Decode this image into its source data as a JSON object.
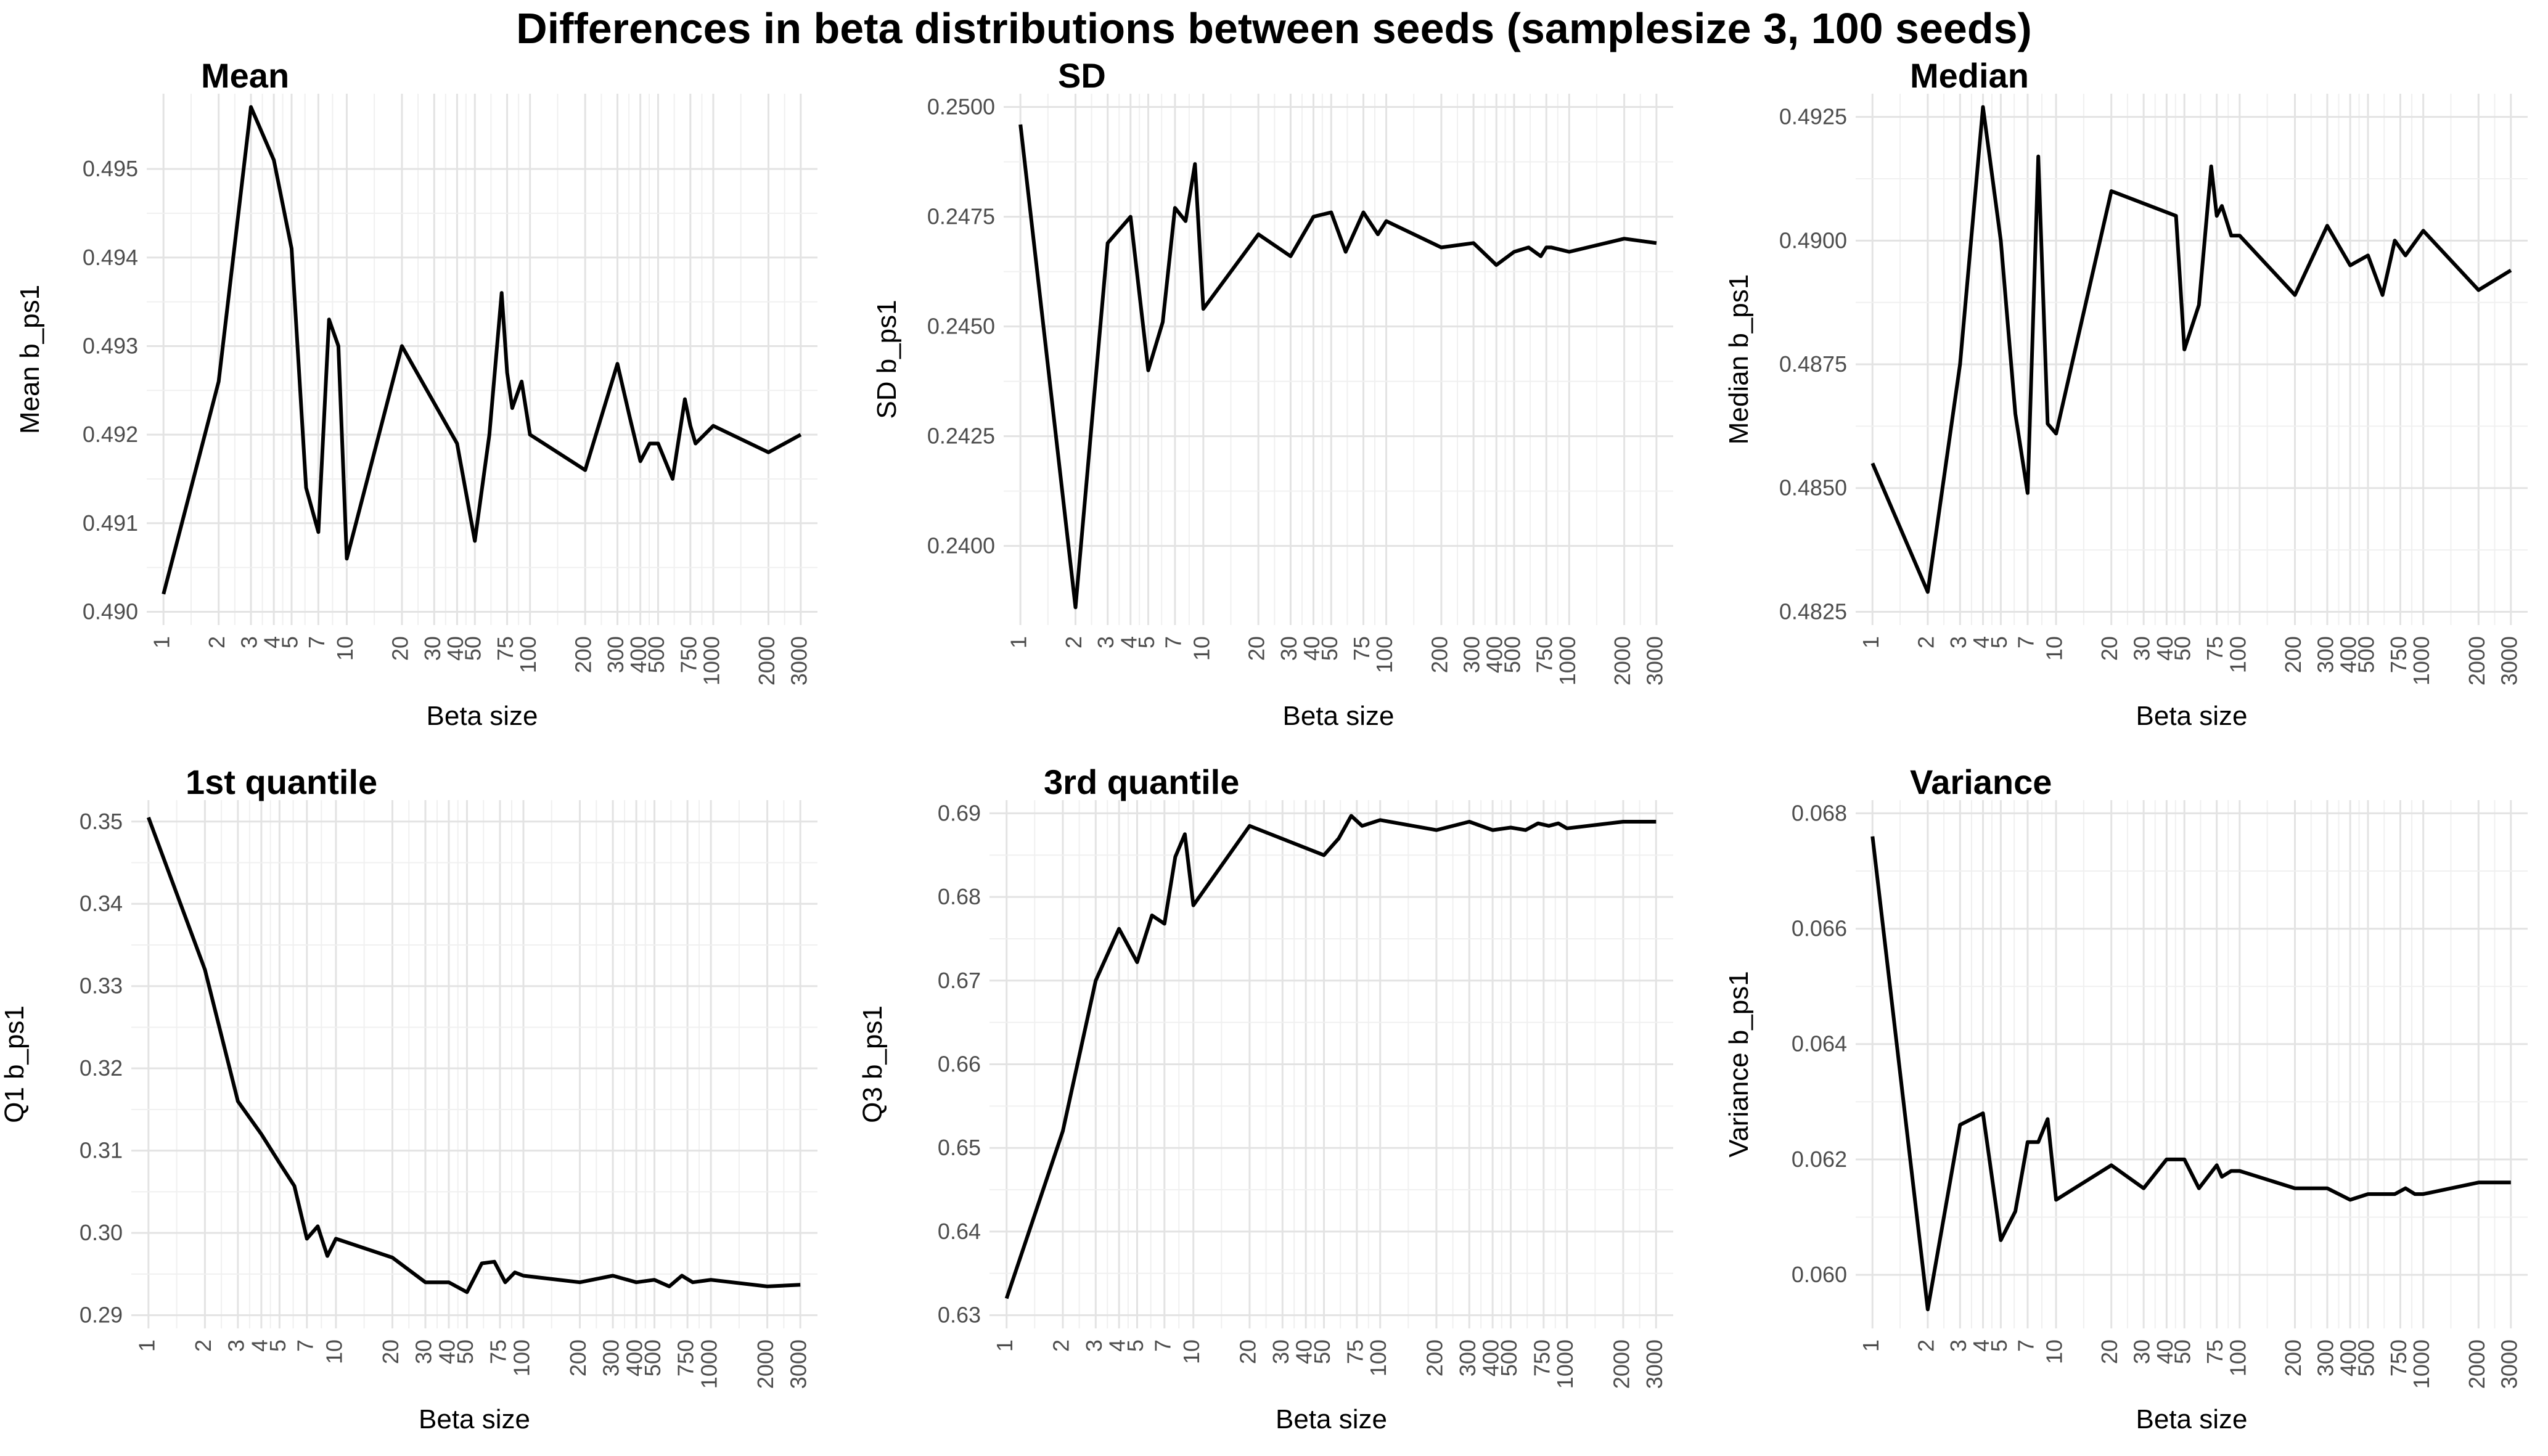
{
  "figure_title": "Differences in beta distributions between seeds (samplesize 3, 100 seeds)",
  "chart_data": [
    {
      "type": "line",
      "title": "Mean",
      "xlabel": "Beta size",
      "ylabel": "Mean b_ps1",
      "x_scale": "log",
      "x_tick_labels": [
        "1",
        "2",
        "3",
        "4",
        "5",
        "7",
        "10",
        "20",
        "30",
        "40",
        "50",
        "75",
        "100",
        "200",
        "300",
        "400",
        "500",
        "750",
        "1000",
        "2000",
        "3000"
      ],
      "x_ticks": [
        1,
        2,
        3,
        4,
        5,
        7,
        10,
        20,
        30,
        40,
        50,
        75,
        100,
        200,
        300,
        400,
        500,
        750,
        1000,
        2000,
        3000
      ],
      "xlim": [
        1,
        3000
      ],
      "ylim": [
        0.49,
        0.4957
      ],
      "y_ticks": [
        0.49,
        0.491,
        0.492,
        0.493,
        0.494,
        0.495
      ],
      "y_tick_labels": [
        "0.490",
        "0.491",
        "0.492",
        "0.493",
        "0.494",
        "0.495"
      ],
      "grid": true,
      "series": [
        {
          "x": [
            1,
            2,
            3,
            4,
            5,
            6,
            7,
            8,
            9,
            10,
            20,
            40,
            50,
            60,
            70,
            75,
            80,
            90,
            100,
            200,
            300,
            350,
            400,
            450,
            500,
            600,
            700,
            750,
            800,
            1000,
            2000,
            3000
          ],
          "values": [
            0.4902,
            0.4926,
            0.4957,
            0.4951,
            0.4941,
            0.4914,
            0.4909,
            0.4933,
            0.493,
            0.4906,
            0.493,
            0.4919,
            0.4908,
            0.492,
            0.4936,
            0.4927,
            0.4923,
            0.4926,
            0.492,
            0.4916,
            0.4928,
            0.4922,
            0.4917,
            0.4919,
            0.4919,
            0.4915,
            0.4924,
            0.4921,
            0.4919,
            0.4921,
            0.4918,
            0.492
          ]
        }
      ]
    },
    {
      "type": "line",
      "title": "SD",
      "xlabel": "Beta size",
      "ylabel": "SD b_ps1",
      "x_scale": "log",
      "x_tick_labels": [
        "1",
        "2",
        "3",
        "4",
        "5",
        "7",
        "10",
        "20",
        "30",
        "40",
        "50",
        "75",
        "100",
        "200",
        "300",
        "400",
        "500",
        "750",
        "1000",
        "2000",
        "3000"
      ],
      "x_ticks": [
        1,
        2,
        3,
        4,
        5,
        7,
        10,
        20,
        30,
        40,
        50,
        75,
        100,
        200,
        300,
        400,
        500,
        750,
        1000,
        2000,
        3000
      ],
      "xlim": [
        1,
        3000
      ],
      "ylim": [
        0.2385,
        0.25
      ],
      "y_ticks": [
        0.24,
        0.2425,
        0.245,
        0.2475,
        0.25
      ],
      "y_tick_labels": [
        "0.2400",
        "0.2425",
        "0.2450",
        "0.2475",
        "0.2500"
      ],
      "grid": true,
      "series": [
        {
          "x": [
            1,
            2,
            3,
            4,
            5,
            6,
            7,
            8,
            9,
            10,
            20,
            30,
            40,
            50,
            60,
            75,
            90,
            100,
            200,
            300,
            400,
            500,
            600,
            700,
            750,
            800,
            1000,
            2000,
            3000
          ],
          "values": [
            0.2496,
            0.2386,
            0.2469,
            0.2475,
            0.244,
            0.2451,
            0.2477,
            0.2474,
            0.2487,
            0.2454,
            0.2471,
            0.2466,
            0.2475,
            0.2476,
            0.2467,
            0.2476,
            0.2471,
            0.2474,
            0.2468,
            0.2469,
            0.2464,
            0.2467,
            0.2468,
            0.2466,
            0.2468,
            0.2468,
            0.2467,
            0.247,
            0.2469
          ]
        }
      ]
    },
    {
      "type": "line",
      "title": "Median",
      "xlabel": "Beta size",
      "ylabel": "Median b_ps1",
      "x_scale": "log",
      "x_tick_labels": [
        "1",
        "2",
        "3",
        "4",
        "5",
        "7",
        "10",
        "20",
        "30",
        "40",
        "50",
        "75",
        "100",
        "200",
        "300",
        "400",
        "500",
        "750",
        "1000",
        "2000",
        "3000"
      ],
      "x_ticks": [
        1,
        2,
        3,
        4,
        5,
        7,
        10,
        20,
        30,
        40,
        50,
        75,
        100,
        200,
        300,
        400,
        500,
        750,
        1000,
        2000,
        3000
      ],
      "xlim": [
        1,
        3000
      ],
      "ylim": [
        0.4825,
        0.4927
      ],
      "y_ticks": [
        0.4825,
        0.485,
        0.4875,
        0.49,
        0.4925
      ],
      "y_tick_labels": [
        "0.4825",
        "0.4850",
        "0.4875",
        "0.4900",
        "0.4925"
      ],
      "grid": true,
      "series": [
        {
          "x": [
            1,
            2,
            3,
            4,
            5,
            6,
            7,
            8,
            9,
            10,
            20,
            45,
            50,
            60,
            70,
            75,
            80,
            90,
            100,
            200,
            300,
            400,
            500,
            600,
            700,
            800,
            1000,
            2000,
            3000
          ],
          "values": [
            0.4855,
            0.4829,
            0.4875,
            0.4927,
            0.49,
            0.4865,
            0.4849,
            0.4917,
            0.4863,
            0.4861,
            0.491,
            0.4905,
            0.4878,
            0.4887,
            0.4915,
            0.4905,
            0.4907,
            0.4901,
            0.4901,
            0.4889,
            0.4903,
            0.4895,
            0.4897,
            0.4889,
            0.49,
            0.4897,
            0.4902,
            0.489,
            0.4894
          ]
        }
      ]
    },
    {
      "type": "line",
      "title": "1st quantile",
      "xlabel": "Beta size",
      "ylabel": "Q1 b_ps1",
      "x_scale": "log",
      "x_tick_labels": [
        "1",
        "2",
        "3",
        "4",
        "5",
        "7",
        "10",
        "20",
        "30",
        "40",
        "50",
        "75",
        "100",
        "200",
        "300",
        "400",
        "500",
        "750",
        "1000",
        "2000",
        "3000"
      ],
      "x_ticks": [
        1,
        2,
        3,
        4,
        5,
        7,
        10,
        20,
        30,
        40,
        50,
        75,
        100,
        200,
        300,
        400,
        500,
        750,
        1000,
        2000,
        3000
      ],
      "xlim": [
        1,
        3000
      ],
      "ylim": [
        0.29,
        0.351
      ],
      "y_ticks": [
        0.29,
        0.3,
        0.31,
        0.32,
        0.33,
        0.34,
        0.35
      ],
      "y_tick_labels": [
        "0.29",
        "0.30",
        "0.31",
        "0.32",
        "0.33",
        "0.34",
        "0.35"
      ],
      "grid": true,
      "series": [
        {
          "x": [
            1,
            2,
            3,
            4,
            5,
            6,
            7,
            8,
            9,
            10,
            20,
            30,
            40,
            50,
            60,
            70,
            80,
            90,
            100,
            200,
            300,
            400,
            500,
            600,
            700,
            800,
            1000,
            2000,
            3000
          ],
          "values": [
            0.3505,
            0.332,
            0.316,
            0.312,
            0.3085,
            0.3057,
            0.2993,
            0.3008,
            0.2972,
            0.2993,
            0.297,
            0.294,
            0.294,
            0.2928,
            0.2963,
            0.2965,
            0.294,
            0.2952,
            0.2948,
            0.294,
            0.2948,
            0.294,
            0.2943,
            0.2935,
            0.2948,
            0.294,
            0.2943,
            0.2935,
            0.2937
          ]
        }
      ]
    },
    {
      "type": "line",
      "title": "3rd quantile",
      "xlabel": "Beta size",
      "ylabel": "Q3 b_ps1",
      "x_scale": "log",
      "x_tick_labels": [
        "1",
        "2",
        "3",
        "4",
        "5",
        "7",
        "10",
        "20",
        "30",
        "40",
        "50",
        "75",
        "100",
        "200",
        "300",
        "400",
        "500",
        "750",
        "1000",
        "2000",
        "3000"
      ],
      "x_ticks": [
        1,
        2,
        3,
        4,
        5,
        7,
        10,
        20,
        30,
        40,
        50,
        75,
        100,
        200,
        300,
        400,
        500,
        750,
        1000,
        2000,
        3000
      ],
      "xlim": [
        1,
        3000
      ],
      "ylim": [
        0.63,
        0.69
      ],
      "y_ticks": [
        0.63,
        0.64,
        0.65,
        0.66,
        0.67,
        0.68,
        0.69
      ],
      "y_tick_labels": [
        "0.63",
        "0.64",
        "0.65",
        "0.66",
        "0.67",
        "0.68",
        "0.69"
      ],
      "grid": true,
      "series": [
        {
          "x": [
            1,
            2,
            3,
            4,
            5,
            6,
            7,
            8,
            9,
            10,
            20,
            50,
            60,
            70,
            80,
            100,
            200,
            300,
            400,
            500,
            600,
            700,
            800,
            900,
            1000,
            2000,
            3000
          ],
          "values": [
            0.632,
            0.652,
            0.67,
            0.6762,
            0.6722,
            0.6778,
            0.6768,
            0.6848,
            0.6875,
            0.679,
            0.6885,
            0.685,
            0.687,
            0.6897,
            0.6885,
            0.6892,
            0.688,
            0.689,
            0.688,
            0.6883,
            0.688,
            0.6888,
            0.6885,
            0.6888,
            0.6882,
            0.689,
            0.689
          ]
        }
      ]
    },
    {
      "type": "line",
      "title": "Variance",
      "xlabel": "Beta size",
      "ylabel": "Variance b_ps1",
      "x_scale": "log",
      "x_tick_labels": [
        "1",
        "2",
        "3",
        "4",
        "5",
        "7",
        "10",
        "20",
        "30",
        "40",
        "50",
        "75",
        "100",
        "200",
        "300",
        "400",
        "500",
        "750",
        "1000",
        "2000",
        "3000"
      ],
      "x_ticks": [
        1,
        2,
        3,
        4,
        5,
        7,
        10,
        20,
        30,
        40,
        50,
        75,
        100,
        200,
        300,
        400,
        500,
        750,
        1000,
        2000,
        3000
      ],
      "xlim": [
        1,
        3000
      ],
      "ylim": [
        0.0593,
        0.068
      ],
      "y_ticks": [
        0.06,
        0.062,
        0.064,
        0.066,
        0.068
      ],
      "y_tick_labels": [
        "0.060",
        "0.062",
        "0.064",
        "0.066",
        "0.068"
      ],
      "grid": true,
      "series": [
        {
          "x": [
            1,
            2,
            3,
            4,
            5,
            6,
            7,
            8,
            9,
            10,
            20,
            30,
            40,
            50,
            60,
            75,
            80,
            90,
            100,
            200,
            300,
            400,
            500,
            600,
            700,
            800,
            900,
            1000,
            2000,
            3000
          ],
          "values": [
            0.0676,
            0.0594,
            0.0626,
            0.0628,
            0.0606,
            0.0611,
            0.0623,
            0.0623,
            0.0627,
            0.0613,
            0.0619,
            0.0615,
            0.062,
            0.062,
            0.0615,
            0.0619,
            0.0617,
            0.0618,
            0.0618,
            0.0615,
            0.0615,
            0.0613,
            0.0614,
            0.0614,
            0.0614,
            0.0615,
            0.0614,
            0.0614,
            0.0616,
            0.0616
          ]
        }
      ]
    }
  ]
}
